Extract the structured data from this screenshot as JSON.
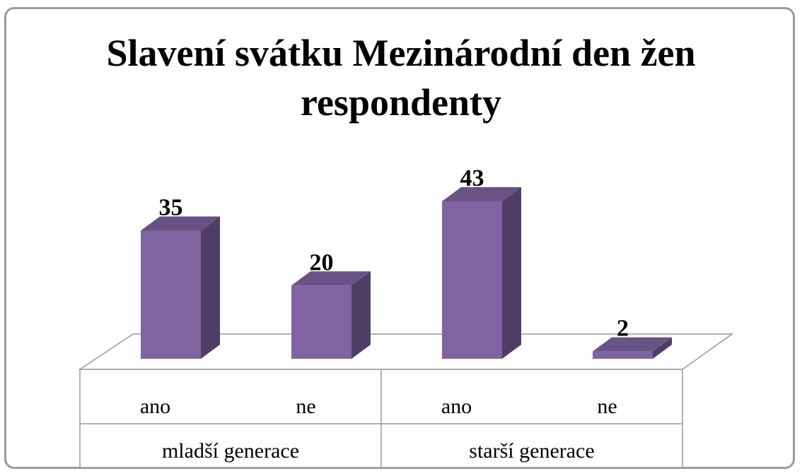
{
  "chart_data": {
    "type": "bar",
    "title": "Slavení svátku Mezinárodní den žen respondenty",
    "categories": [
      "ano",
      "ne",
      "ano",
      "ne"
    ],
    "groups": [
      "mladší generace",
      "starší generace"
    ],
    "values": [
      35,
      20,
      43,
      2
    ],
    "color": "#8064a2"
  }
}
